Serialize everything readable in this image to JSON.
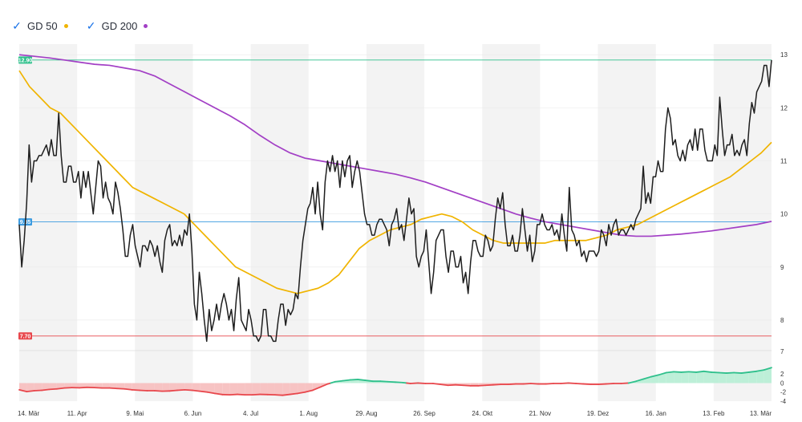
{
  "legend": {
    "items": [
      {
        "label": "GD 50",
        "color": "#f0b400",
        "checked": true
      },
      {
        "label": "GD 200",
        "color": "#a23fc5",
        "checked": true
      }
    ]
  },
  "colors": {
    "price": "#1e1e1e",
    "gd50": "#f0b400",
    "gd200": "#a23fc5",
    "upper_line": "#2fc08c",
    "mid_line": "#3b9be0",
    "lower_line": "#e8474c",
    "osc_pos_line": "#2fc08c",
    "osc_pos_fill": "#bdefd8",
    "osc_neg_line": "#e8474c",
    "osc_neg_fill": "#f7c3c3",
    "band": "#f3f3f3"
  },
  "chart_data": {
    "type": "line",
    "x_ticks": [
      "14. Mär",
      "11. Apr",
      "9. Mai",
      "6. Jun",
      "4. Jul",
      "1. Aug",
      "29. Aug",
      "26. Sep",
      "24. Okt",
      "21. Nov",
      "19. Dez",
      "16. Jan",
      "13. Feb",
      "13. Mär"
    ],
    "y_ticks": [
      8,
      9,
      10,
      11,
      12,
      13
    ],
    "ylim": [
      7.5,
      13.2
    ],
    "levels": [
      {
        "label": "12.90",
        "value": 12.9,
        "color": "#2fc08c"
      },
      {
        "label": "9.85",
        "value": 9.85,
        "color": "#3b9be0"
      },
      {
        "label": "7.70",
        "value": 7.7,
        "color": "#e8474c"
      }
    ],
    "series": [
      {
        "key": "price",
        "values": [
          9.8,
          9.0,
          9.5,
          10.2,
          11.3,
          10.6,
          11.0,
          11.0,
          11.1,
          11.1,
          11.2,
          11.3,
          11.1,
          11.4,
          11.1,
          11.1,
          11.9,
          11.1,
          10.6,
          10.6,
          10.9,
          10.9,
          10.6,
          10.6,
          10.8,
          10.3,
          10.8,
          10.5,
          10.8,
          10.4,
          10.0,
          10.5,
          11.0,
          10.9,
          10.3,
          10.6,
          10.3,
          10.2,
          10.0,
          10.6,
          10.4,
          10.1,
          9.7,
          9.2,
          9.2,
          9.6,
          9.8,
          9.4,
          9.2,
          9.0,
          9.4,
          9.4,
          9.3,
          9.5,
          9.4,
          9.2,
          9.4,
          9.1,
          8.9,
          9.5,
          9.7,
          9.8,
          9.4,
          9.5,
          9.4,
          9.6,
          9.4,
          9.7,
          9.6,
          10.0,
          9.3,
          8.3,
          8.0,
          8.9,
          8.5,
          8.0,
          7.6,
          8.2,
          7.8,
          8.0,
          8.3,
          8.0,
          8.3,
          8.5,
          8.3,
          8.0,
          8.2,
          7.8,
          8.4,
          8.8,
          8.0,
          7.9,
          7.8,
          8.2,
          8.0,
          7.7,
          7.7,
          7.6,
          7.7,
          8.2,
          8.2,
          7.7,
          7.7,
          7.6,
          7.6,
          8.0,
          8.3,
          8.3,
          7.9,
          8.2,
          8.1,
          8.2,
          8.5,
          8.4,
          9.0,
          9.5,
          9.8,
          10.1,
          10.2,
          10.5,
          10.0,
          10.6,
          10.0,
          9.7,
          10.6,
          11.0,
          10.8,
          11.1,
          10.8,
          11.0,
          10.5,
          11.0,
          10.7,
          11.0,
          11.1,
          10.5,
          10.8,
          11.0,
          10.8,
          10.4,
          10.0,
          9.8,
          9.8,
          9.6,
          9.6,
          9.8,
          9.9,
          9.9,
          9.8,
          9.7,
          9.4,
          9.8,
          9.9,
          10.1,
          9.7,
          9.8,
          9.5,
          9.9,
          10.3,
          10.0,
          10.1,
          9.2,
          9.0,
          9.2,
          9.3,
          9.7,
          9.1,
          8.5,
          8.9,
          9.5,
          9.6,
          9.7,
          9.7,
          9.2,
          8.9,
          9.3,
          9.3,
          9.0,
          9.0,
          9.2,
          8.7,
          8.9,
          8.5,
          9.1,
          9.5,
          9.5,
          9.3,
          9.2,
          9.2,
          9.6,
          9.5,
          9.3,
          9.4,
          9.9,
          10.3,
          10.1,
          10.4,
          9.8,
          9.4,
          9.4,
          9.6,
          9.3,
          9.3,
          9.6,
          10.1,
          9.7,
          9.3,
          9.6,
          9.1,
          9.3,
          9.8,
          9.8,
          10.0,
          9.8,
          9.7,
          9.7,
          9.8,
          9.6,
          9.7,
          9.5,
          10.0,
          9.6,
          9.3,
          10.5,
          9.7,
          9.6,
          9.4,
          9.5,
          9.2,
          9.3,
          9.1,
          9.3,
          9.3,
          9.3,
          9.2,
          9.3,
          9.7,
          9.6,
          9.4,
          9.8,
          9.6,
          9.8,
          9.9,
          9.6,
          9.7,
          9.7,
          9.6,
          9.7,
          9.8,
          9.7,
          9.9,
          10.0,
          10.1,
          10.9,
          10.2,
          10.4,
          10.2,
          10.7,
          10.7,
          11.0,
          10.8,
          10.8,
          11.6,
          12.0,
          11.8,
          11.3,
          11.4,
          11.1,
          11.0,
          11.2,
          11.0,
          11.3,
          11.4,
          11.2,
          11.6,
          11.2,
          11.6,
          11.6,
          11.2,
          11.0,
          11.0,
          11.0,
          11.3,
          11.1,
          12.2,
          11.6,
          11.1,
          11.3,
          11.3,
          11.5,
          11.1,
          11.2,
          11.1,
          11.3,
          11.4,
          11.1,
          11.7,
          12.1,
          11.9,
          12.3,
          12.4,
          12.5,
          12.8,
          12.8,
          12.4,
          12.9
        ]
      },
      {
        "key": "gd50",
        "values": [
          12.7,
          12.4,
          12.2,
          12.0,
          11.9,
          11.7,
          11.5,
          11.3,
          11.1,
          10.9,
          10.7,
          10.5,
          10.4,
          10.3,
          10.2,
          10.1,
          10.0,
          9.8,
          9.6,
          9.4,
          9.2,
          9.0,
          8.9,
          8.8,
          8.7,
          8.6,
          8.55,
          8.5,
          8.55,
          8.6,
          8.7,
          8.85,
          9.1,
          9.35,
          9.5,
          9.6,
          9.7,
          9.75,
          9.8,
          9.9,
          9.95,
          10.0,
          9.95,
          9.85,
          9.7,
          9.6,
          9.5,
          9.45,
          9.45,
          9.45,
          9.45,
          9.45,
          9.5,
          9.5,
          9.5,
          9.5,
          9.55,
          9.6,
          9.7,
          9.75,
          9.8,
          9.9,
          10.0,
          10.1,
          10.2,
          10.3,
          10.4,
          10.5,
          10.6,
          10.7,
          10.85,
          11.0,
          11.15,
          11.35
        ]
      },
      {
        "key": "gd200",
        "values": [
          13.0,
          12.97,
          12.94,
          12.9,
          12.86,
          12.82,
          12.8,
          12.75,
          12.7,
          12.6,
          12.45,
          12.3,
          12.15,
          12.0,
          11.85,
          11.68,
          11.48,
          11.3,
          11.15,
          11.05,
          11.0,
          10.95,
          10.9,
          10.85,
          10.8,
          10.75,
          10.68,
          10.6,
          10.5,
          10.4,
          10.3,
          10.2,
          10.1,
          10.0,
          9.92,
          9.85,
          9.8,
          9.75,
          9.7,
          9.65,
          9.6,
          9.58,
          9.58,
          9.6,
          9.62,
          9.65,
          9.68,
          9.72,
          9.76,
          9.8,
          9.86
        ]
      }
    ],
    "oscillator": {
      "y_ticks": [
        7,
        2,
        0,
        -2,
        -4
      ],
      "ylim": [
        -4,
        7
      ],
      "values": [
        -1.5,
        -1.9,
        -1.7,
        -1.6,
        -1.4,
        -1.3,
        -1.1,
        -1.0,
        -1.05,
        -0.95,
        -1.0,
        -1.1,
        -1.1,
        -1.2,
        -1.3,
        -1.5,
        -1.6,
        -1.7,
        -1.7,
        -1.8,
        -1.75,
        -1.6,
        -1.5,
        -1.6,
        -1.8,
        -2.0,
        -2.3,
        -2.55,
        -2.6,
        -2.5,
        -2.6,
        -2.6,
        -2.5,
        -2.55,
        -2.6,
        -2.7,
        -2.5,
        -2.3,
        -2.0,
        -1.6,
        -0.9,
        -0.2,
        0.3,
        0.5,
        0.7,
        0.8,
        0.6,
        0.4,
        0.4,
        0.3,
        0.2,
        0.1,
        -0.1,
        0.0,
        -0.1,
        -0.1,
        -0.3,
        -0.5,
        -0.4,
        -0.5,
        -0.6,
        -0.6,
        -0.5,
        -0.4,
        -0.3,
        -0.3,
        -0.2,
        -0.2,
        -0.1,
        -0.2,
        -0.2,
        -0.1,
        -0.1,
        0.0,
        -0.1,
        -0.2,
        -0.3,
        -0.3,
        -0.2,
        -0.1,
        -0.1,
        0.0,
        0.4,
        0.9,
        1.4,
        1.8,
        2.3,
        2.5,
        2.4,
        2.5,
        2.4,
        2.6,
        2.4,
        2.3,
        2.2,
        2.3,
        2.2,
        2.4,
        2.6,
        2.9,
        3.4
      ]
    }
  }
}
